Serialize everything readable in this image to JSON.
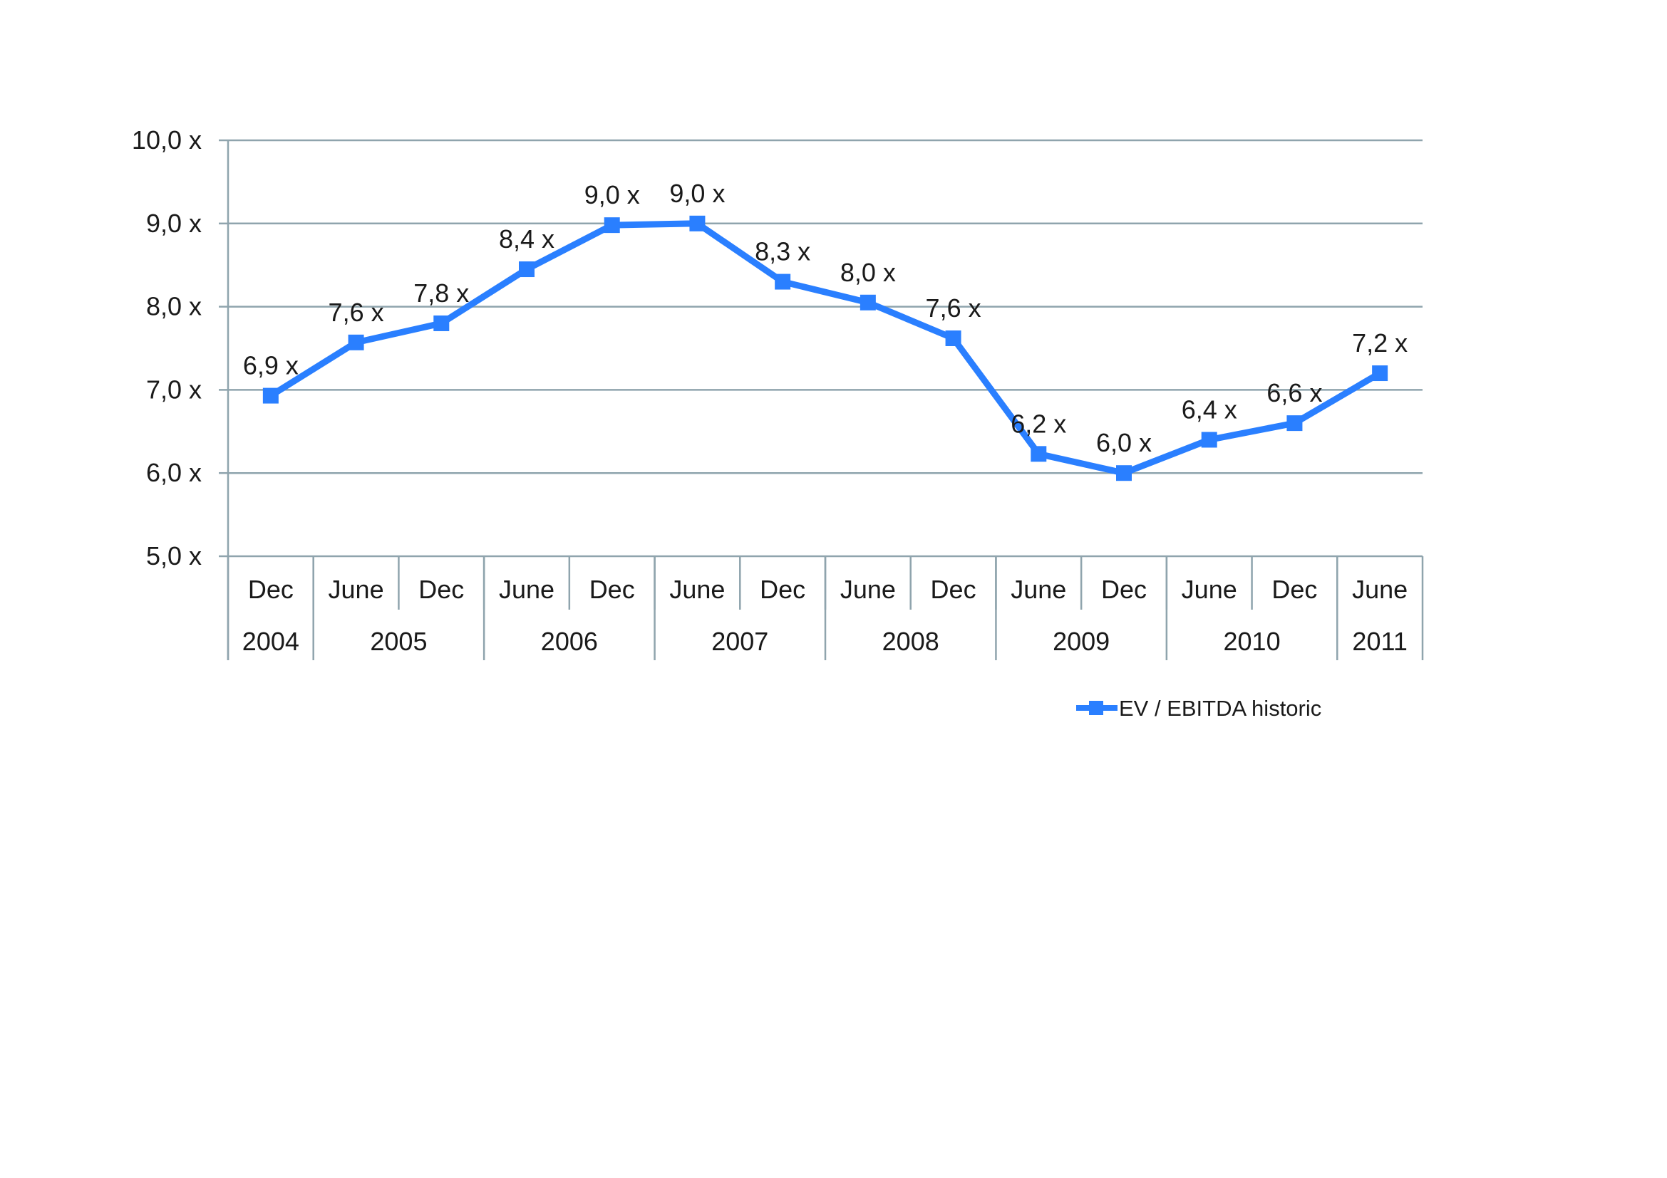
{
  "chart_data": {
    "type": "line",
    "title": "",
    "xlabel": "",
    "ylabel": "",
    "ylim": [
      5,
      10
    ],
    "grid": true,
    "legend": "bottom-right",
    "y_ticks": [
      "5,0 x",
      "6,0 x",
      "7,0 x",
      "8,0 x",
      "9,0 x",
      "10,0 x"
    ],
    "categories": [
      "Dec",
      "June",
      "Dec",
      "June",
      "Dec",
      "June",
      "Dec",
      "June",
      "Dec",
      "June",
      "Dec",
      "June",
      "Dec",
      "June"
    ],
    "year_groups": [
      {
        "label": "2004",
        "span": 1
      },
      {
        "label": "2005",
        "span": 2
      },
      {
        "label": "2006",
        "span": 2
      },
      {
        "label": "2007",
        "span": 2
      },
      {
        "label": "2008",
        "span": 2
      },
      {
        "label": "2009",
        "span": 2
      },
      {
        "label": "2010",
        "span": 2
      },
      {
        "label": "2011",
        "span": 1
      }
    ],
    "series": [
      {
        "name": "EV / EBITDA historic",
        "color": "#2a7fff",
        "marker": "square",
        "values": [
          6.93,
          7.57,
          7.8,
          8.45,
          8.98,
          9.0,
          8.3,
          8.05,
          7.62,
          6.23,
          6.0,
          6.4,
          6.6,
          7.2
        ],
        "data_labels": [
          "6,9 x",
          "7,6 x",
          "7,8 x",
          "8,4 x",
          "9,0 x",
          "9,0 x",
          "8,3 x",
          "8,0 x",
          "7,6 x",
          "6,2 x",
          "6,0 x",
          "6,4 x",
          "6,6 x",
          "7,2 x"
        ]
      }
    ],
    "colors": {
      "grid": "#8fa4ad",
      "axis": "#8fa4ad",
      "text": "#1a1a1a"
    }
  }
}
